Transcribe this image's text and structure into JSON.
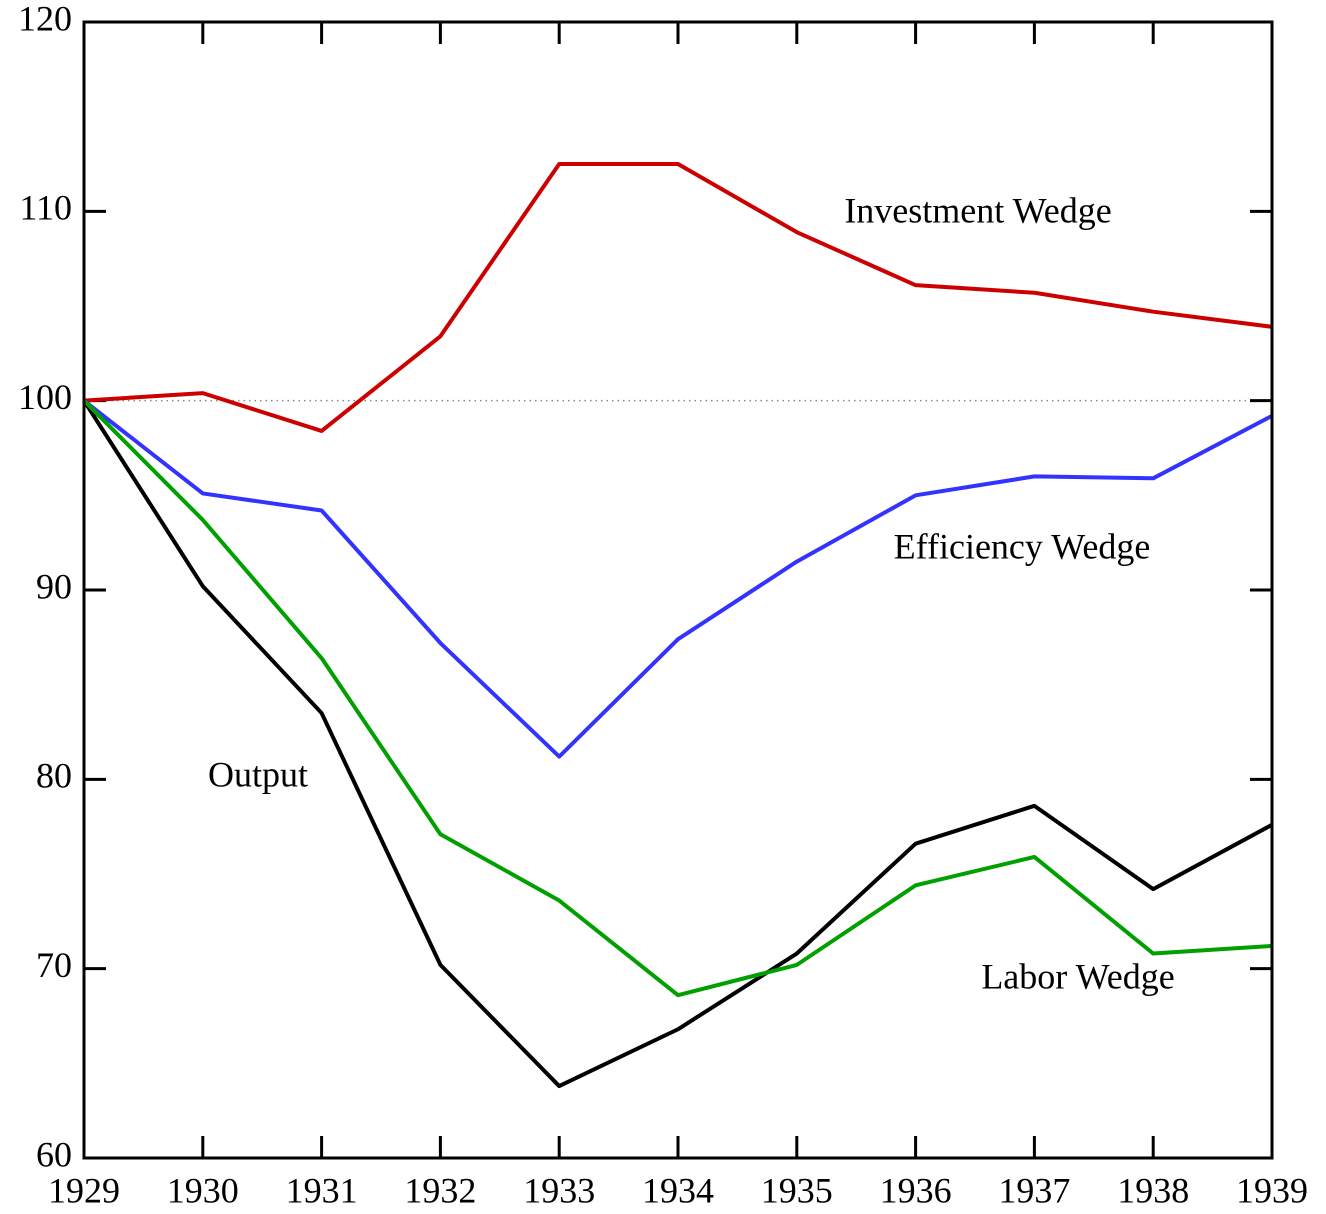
{
  "chart_data": {
    "type": "line",
    "x": [
      1929,
      1930,
      1931,
      1932,
      1933,
      1934,
      1935,
      1936,
      1937,
      1938,
      1939
    ],
    "series": [
      {
        "name": "Investment Wedge",
        "color": "#cc0000",
        "values": [
          100,
          100.4,
          98.4,
          103.4,
          112.5,
          112.5,
          108.9,
          106.1,
          105.7,
          104.7,
          103.9
        ]
      },
      {
        "name": "Efficiency Wedge",
        "color": "#3333ff",
        "values": [
          100,
          95.1,
          94.2,
          87.2,
          81.2,
          87.4,
          91.5,
          95.0,
          96.0,
          95.9,
          99.2
        ]
      },
      {
        "name": "Output",
        "color": "#000000",
        "values": [
          100,
          90.2,
          83.5,
          70.2,
          63.8,
          66.8,
          70.8,
          76.6,
          78.6,
          74.2,
          77.6
        ]
      },
      {
        "name": "Labor Wedge",
        "color": "#00a000",
        "values": [
          100,
          93.7,
          86.4,
          77.1,
          73.6,
          68.6,
          70.2,
          74.4,
          75.9,
          70.8,
          71.2
        ]
      }
    ],
    "xlim": [
      1929,
      1939
    ],
    "xticks": [
      1929,
      1930,
      1931,
      1932,
      1933,
      1934,
      1935,
      1936,
      1937,
      1938,
      1939
    ],
    "ylim": [
      60,
      120
    ],
    "yticks": [
      60,
      70,
      80,
      90,
      100,
      110,
      120
    ],
    "reference_line": 100,
    "grid": false
  }
}
